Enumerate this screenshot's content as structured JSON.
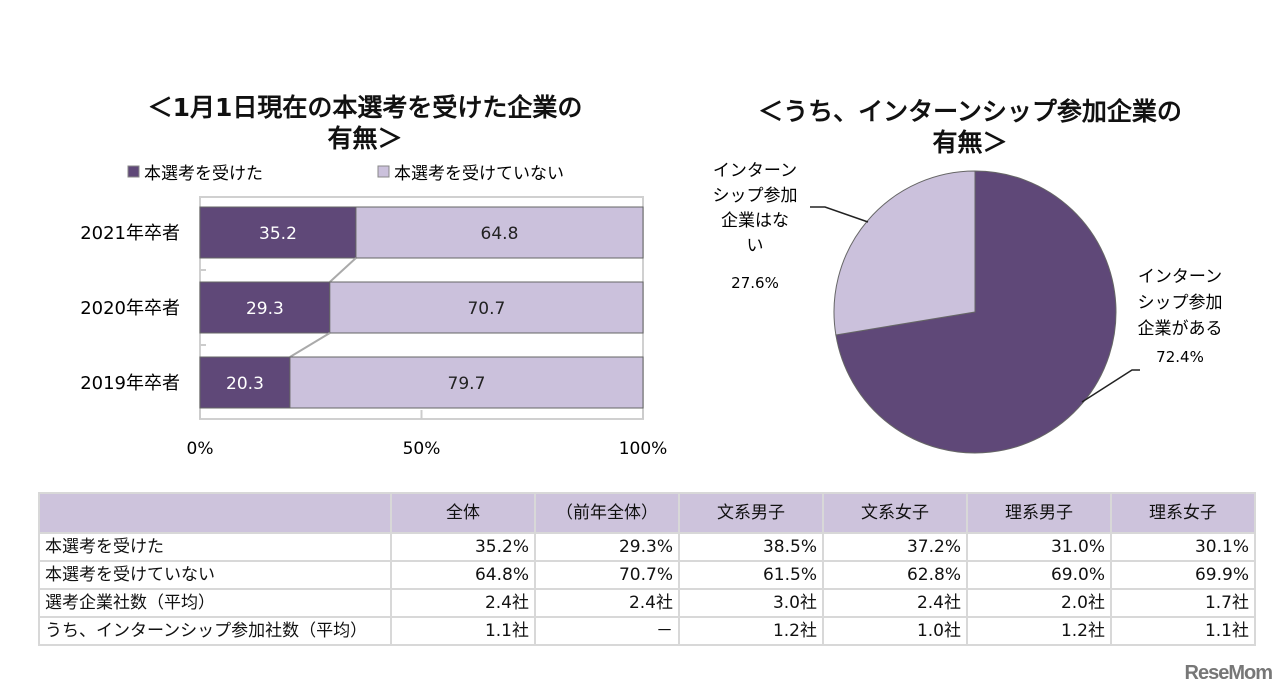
{
  "chart_data": [
    {
      "type": "bar",
      "stacked": true,
      "orientation": "horizontal",
      "title": "＜1月1日現在の本選考を受けた企業の有無＞",
      "title_lines": [
        "＜1月1日現在の本選考を受けた企業の",
        "有無＞"
      ],
      "categories": [
        "2021年卒者",
        "2020年卒者",
        "2019年卒者"
      ],
      "series": [
        {
          "name": "本選考を受けた",
          "values": [
            35.2,
            29.3,
            20.3
          ],
          "color": "#5f4878"
        },
        {
          "name": "本選考を受けていない",
          "values": [
            64.8,
            70.7,
            79.7
          ],
          "color": "#cbc1dc"
        }
      ],
      "xlim": [
        0,
        100
      ],
      "xticks": [
        "0%",
        "50%",
        "100%"
      ],
      "legend": "top"
    },
    {
      "type": "pie",
      "title": "＜うち、インターンシップ参加企業の有無＞",
      "title_lines": [
        "＜うち、インターンシップ参加企業の",
        "有無＞"
      ],
      "slices": [
        {
          "label_lines": [
            "インターン",
            "シップ参加",
            "企業がある"
          ],
          "value": 72.4,
          "value_label": "72.4%",
          "color": "#5f4878"
        },
        {
          "label_lines": [
            "インターン",
            "シップ参加",
            "企業はな",
            "い"
          ],
          "value": 27.6,
          "value_label": "27.6%",
          "color": "#cbc1dc"
        }
      ]
    }
  ],
  "table": {
    "headers": [
      "",
      "全体",
      "（前年全体）",
      "文系男子",
      "文系女子",
      "理系男子",
      "理系女子"
    ],
    "rows": [
      [
        "本選考を受けた",
        "35.2%",
        "29.3%",
        "38.5%",
        "37.2%",
        "31.0%",
        "30.1%"
      ],
      [
        "本選考を受けていない",
        "64.8%",
        "70.7%",
        "61.5%",
        "62.8%",
        "69.0%",
        "69.9%"
      ],
      [
        "選考企業社数（平均）",
        "2.4社",
        "2.4社",
        "3.0社",
        "2.4社",
        "2.0社",
        "1.7社"
      ],
      [
        "うち、インターンシップ参加社数（平均）",
        "1.1社",
        "－",
        "1.2社",
        "1.0社",
        "1.2社",
        "1.1社"
      ]
    ]
  },
  "logo": "ReseMom"
}
